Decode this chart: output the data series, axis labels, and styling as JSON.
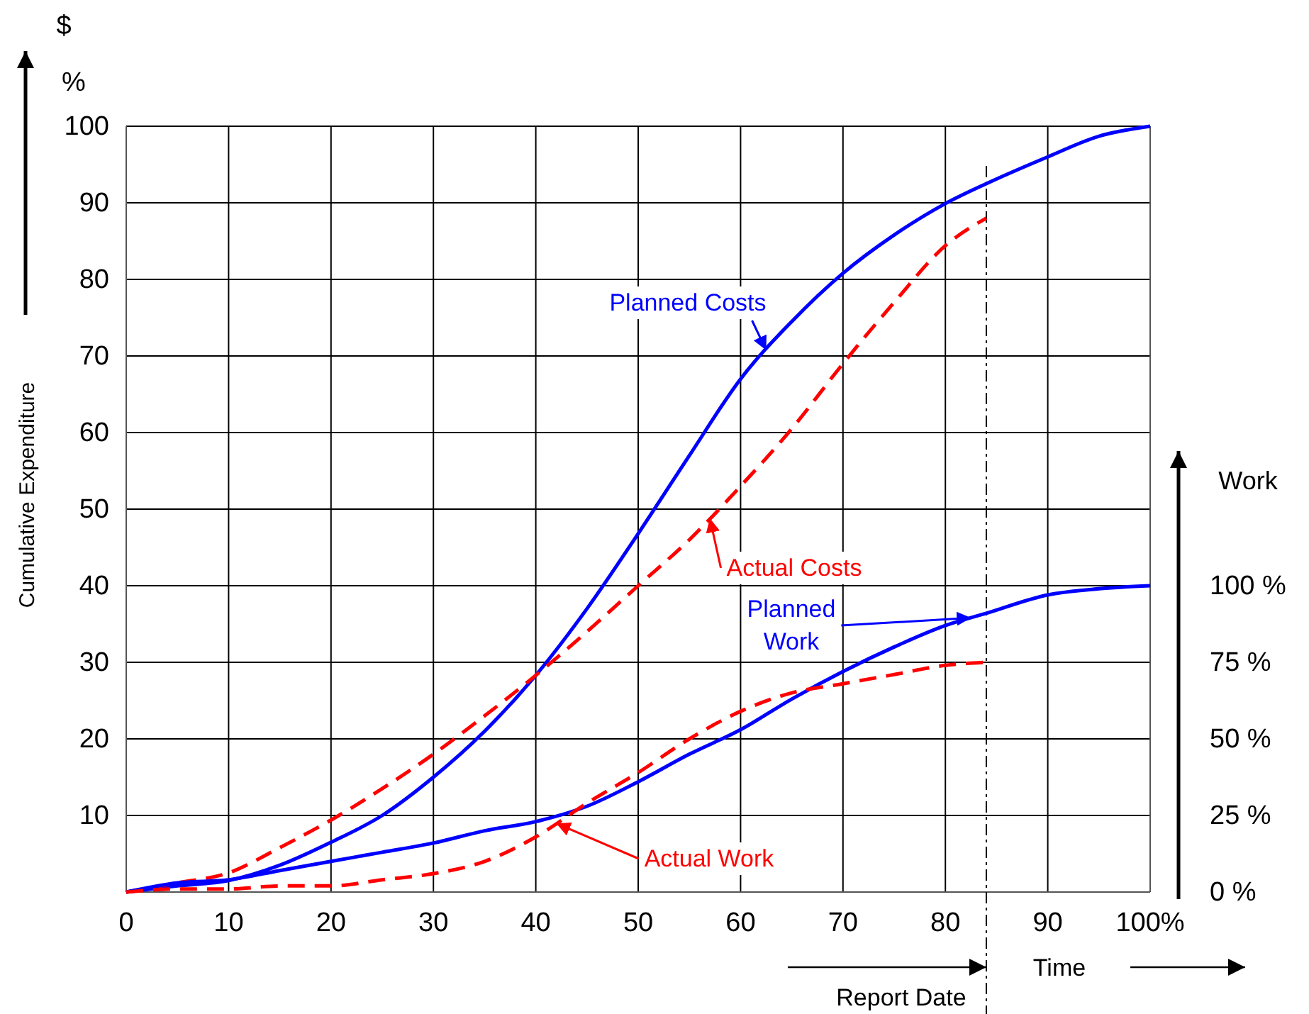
{
  "chart_data": {
    "type": "line",
    "ylabel": "Cumulative Expenditure",
    "xlabel": "Time",
    "y2label": "Work",
    "annotations": [
      "$",
      "%"
    ],
    "x": [
      0,
      5,
      10,
      15,
      20,
      25,
      30,
      35,
      40,
      45,
      50,
      55,
      60,
      65,
      70,
      75,
      80,
      84,
      90,
      95,
      100
    ],
    "xlim": [
      0,
      100
    ],
    "xticks": [
      0,
      10,
      20,
      30,
      40,
      50,
      60,
      70,
      80,
      90,
      {
        "value": 100,
        "label": "100%"
      }
    ],
    "ylim": [
      0,
      100
    ],
    "yticks": [
      10,
      20,
      30,
      40,
      50,
      60,
      70,
      80,
      90,
      100
    ],
    "y2lim": [
      0,
      250
    ],
    "y2ticks": [
      {
        "value": 0,
        "label": "0 %"
      },
      {
        "value": 25,
        "label": "25 %"
      },
      {
        "value": 50,
        "label": "50 %"
      },
      {
        "value": 75,
        "label": "75 %"
      },
      {
        "value": 100,
        "label": "100 %"
      }
    ],
    "grid": true,
    "ref_lines": [
      {
        "axis": "x",
        "value": 84,
        "label": "Report Date",
        "color": "#000000",
        "line_style": "dashed"
      }
    ],
    "series": [
      {
        "name": "Planned Costs",
        "color": "#0000ff",
        "line_style": "solid",
        "values": [
          0,
          0.8,
          1.5,
          3.5,
          6.5,
          10,
          15,
          21,
          28.3,
          37,
          46.8,
          57,
          67,
          74.5,
          80.8,
          85.8,
          89.9,
          92.5,
          96,
          98.7,
          100
        ]
      },
      {
        "name": "Actual Costs",
        "color": "#ff0000",
        "line_style": "dashed",
        "values": [
          0,
          1.2,
          2.5,
          5.8,
          9.4,
          13.5,
          18,
          23,
          28.3,
          34,
          40,
          46,
          53,
          60.5,
          69,
          77,
          84.4,
          88,
          null,
          null,
          null
        ]
      },
      {
        "name": "Planned Work",
        "color": "#0000ff",
        "line_style": "solid",
        "axis": "y2",
        "values": [
          0,
          3,
          4,
          7,
          10,
          13,
          16,
          20,
          23,
          28,
          36,
          45,
          53,
          63,
          72,
          80,
          87,
          91,
          97,
          99,
          100
        ]
      },
      {
        "name": "Actual Work",
        "color": "#ff0000",
        "line_style": "dashed",
        "axis": "y2",
        "values": [
          0,
          1,
          1,
          2,
          2,
          4,
          6,
          10,
          18,
          29,
          39,
          50,
          59,
          65,
          68,
          71,
          74,
          75,
          null,
          null,
          null
        ]
      }
    ]
  }
}
